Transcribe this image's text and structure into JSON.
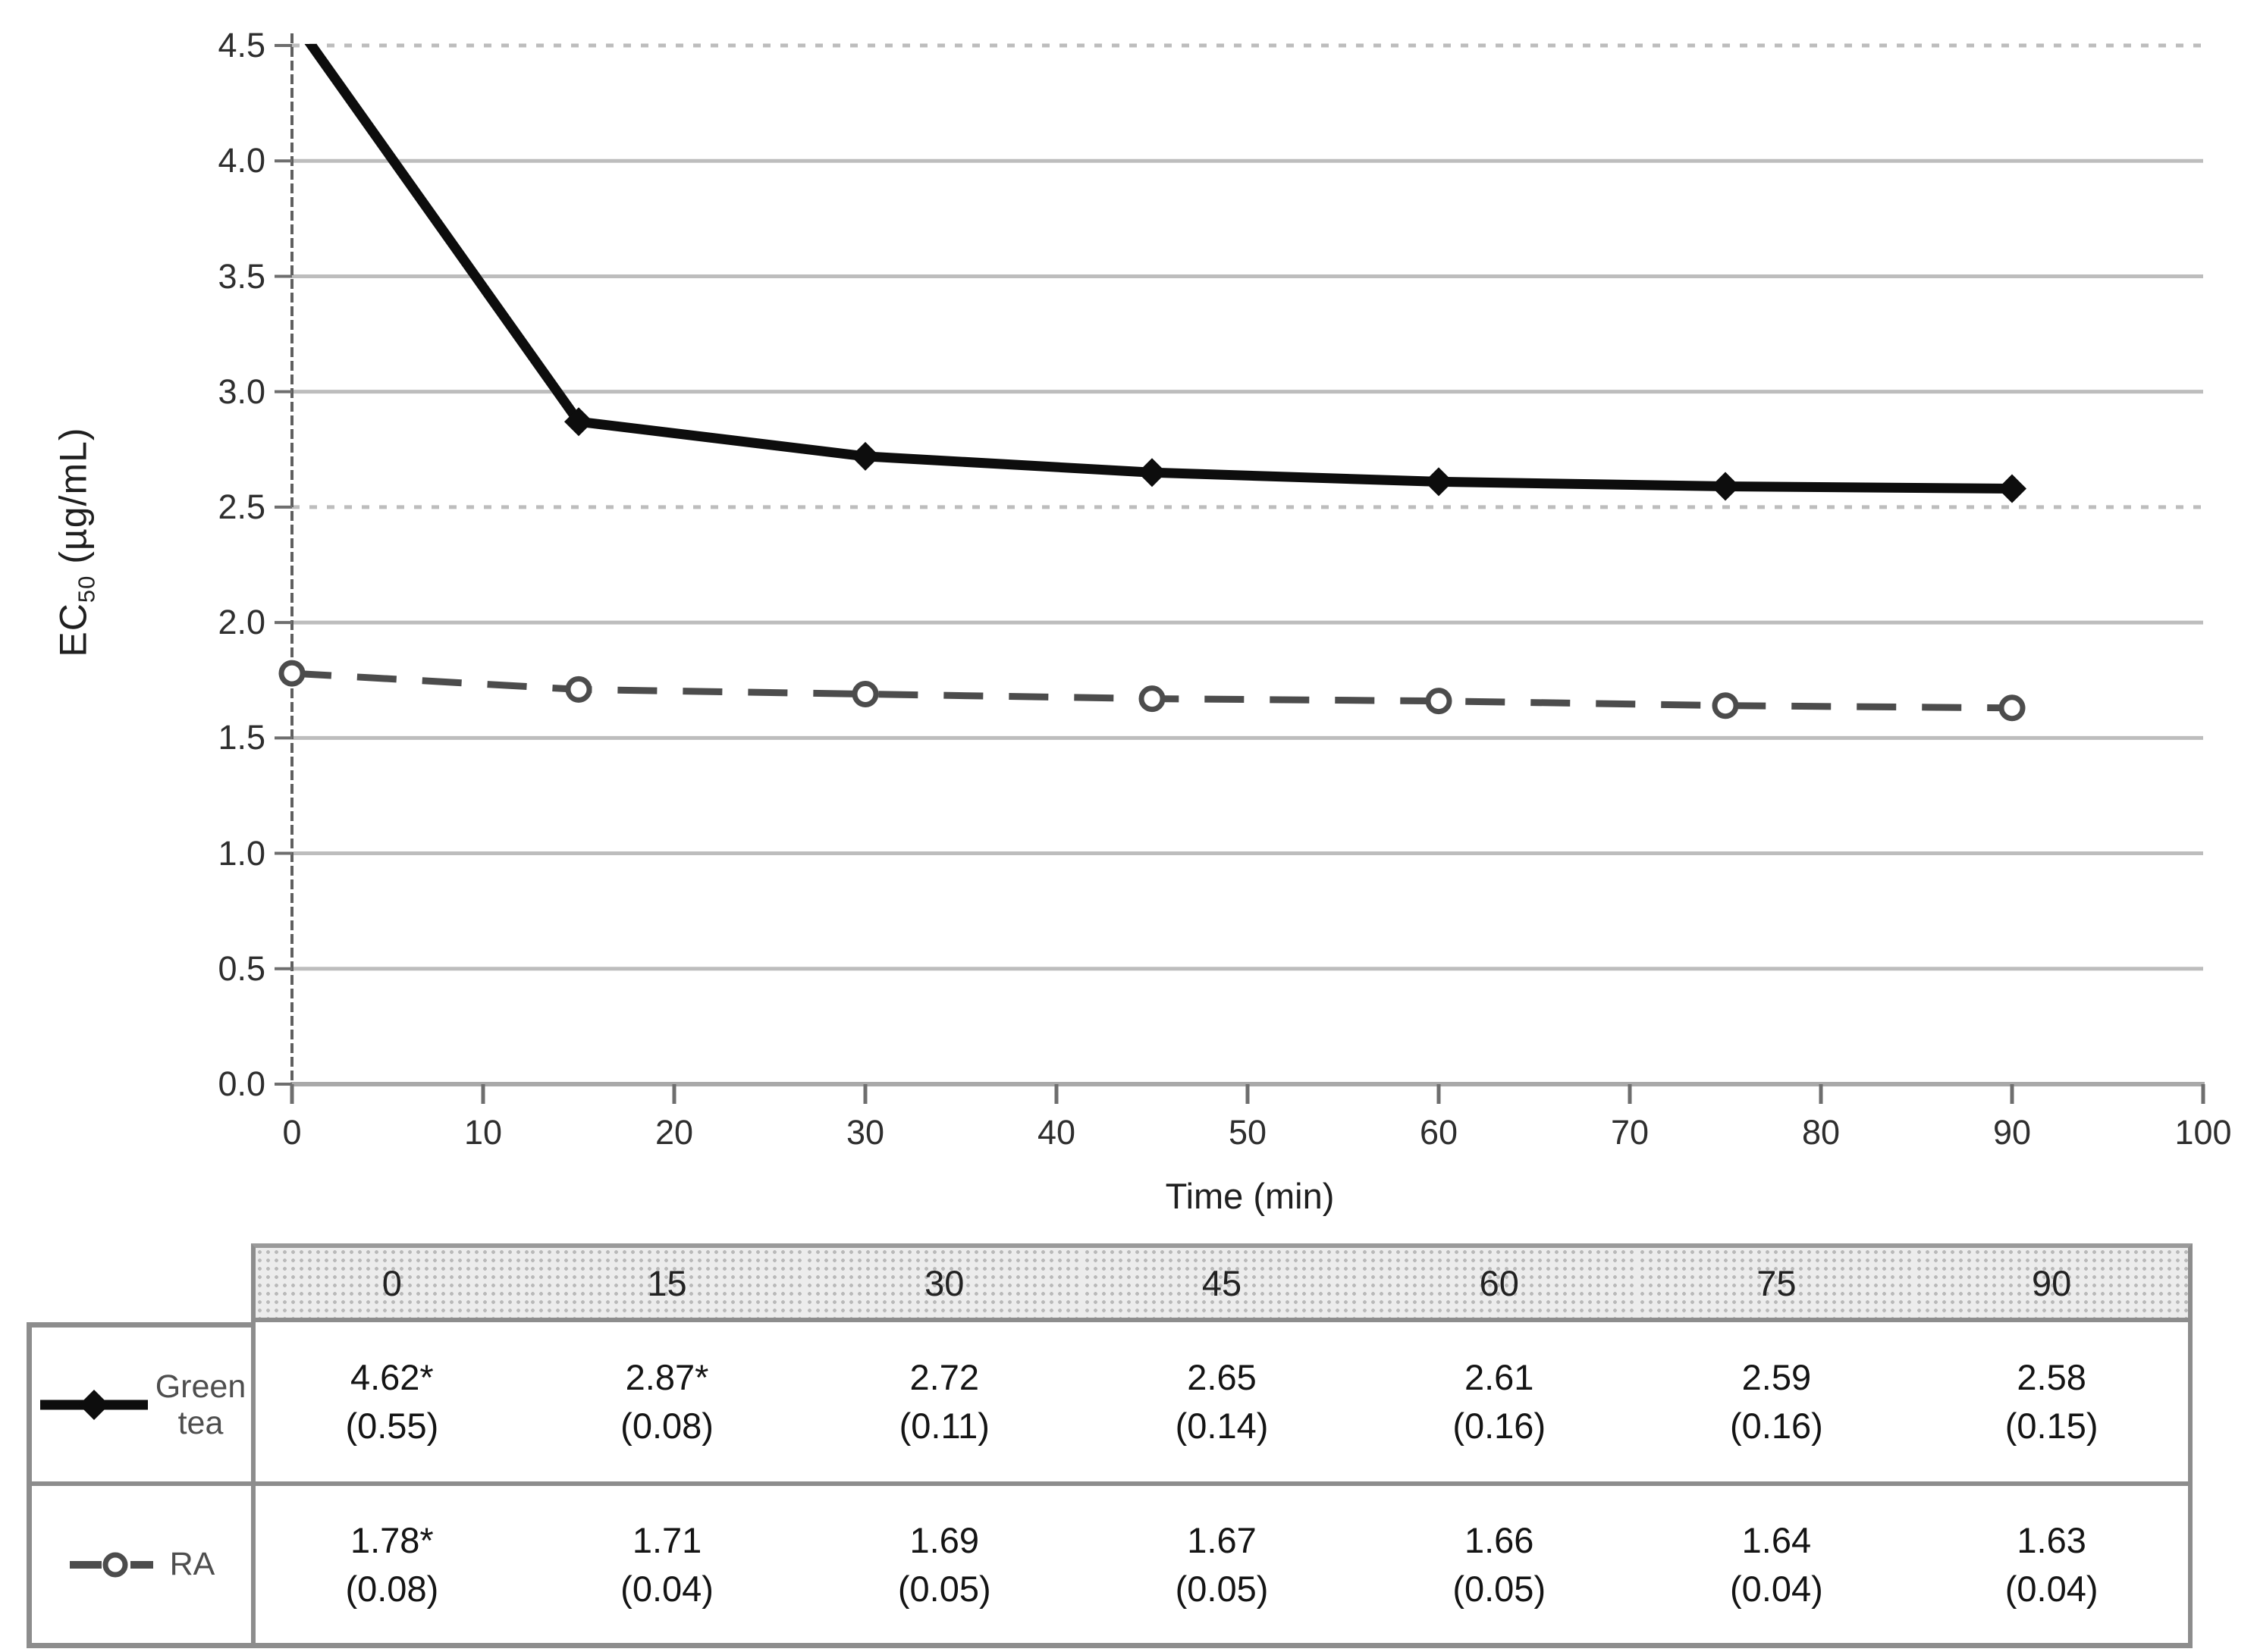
{
  "chart_data": {
    "type": "line",
    "title": "",
    "xlabel": "Time (min)",
    "ylabel": "EC50 (µg/mL)",
    "ylabel_parts": {
      "base": "EC",
      "sub": "50",
      "unit": " (µg/mL)"
    },
    "x": [
      0,
      15,
      30,
      45,
      60,
      75,
      90
    ],
    "xlim": [
      0,
      100
    ],
    "ylim": [
      0,
      4.5
    ],
    "x_ticks": [
      0,
      10,
      20,
      30,
      40,
      50,
      60,
      70,
      80,
      90,
      100
    ],
    "x_tick_labels": [
      "0",
      "10",
      "20",
      "30",
      "40",
      "50",
      "60",
      "70",
      "80",
      "90",
      "100"
    ],
    "y_ticks": [
      0,
      0.5,
      1,
      1.5,
      2,
      2.5,
      3,
      3.5,
      4,
      4.5
    ],
    "y_tick_labels": [
      "0.0",
      "0.5",
      "1.0",
      "1.5",
      "2.0",
      "2.5",
      "3.0",
      "3.5",
      "4.0",
      "4.5"
    ],
    "grid": "horizontal",
    "dashed_gridlines": [
      2.5,
      4.5
    ],
    "legend_position": "left-column-of-table",
    "series": [
      {
        "name": "Green tea",
        "slug": "green-tea",
        "marker": "filled-diamond",
        "line": "solid",
        "color": "#0d0d0d",
        "values": [
          4.62,
          2.87,
          2.72,
          2.65,
          2.61,
          2.59,
          2.58
        ],
        "se": [
          0.55,
          0.08,
          0.11,
          0.14,
          0.16,
          0.16,
          0.15
        ]
      },
      {
        "name": "RA",
        "slug": "ra",
        "marker": "open-circle",
        "line": "dashed",
        "color": "#4c4c4c",
        "values": [
          1.78,
          1.71,
          1.69,
          1.67,
          1.66,
          1.64,
          1.63
        ],
        "se": [
          0.08,
          0.04,
          0.05,
          0.05,
          0.05,
          0.04,
          0.04
        ]
      }
    ]
  },
  "table": {
    "columns": [
      "0",
      "15",
      "30",
      "45",
      "60",
      "75",
      "90"
    ],
    "rows": [
      {
        "legend_label": "Green tea",
        "legend_line1": "Green",
        "legend_line2": "tea",
        "values": [
          "4.62*",
          "2.87*",
          "2.72",
          "2.65",
          "2.61",
          "2.59",
          "2.58"
        ],
        "se": [
          "(0.55)",
          "(0.08)",
          "(0.11)",
          "(0.14)",
          "(0.16)",
          "(0.16)",
          "(0.15)"
        ]
      },
      {
        "legend_label": "RA",
        "values": [
          "1.78*",
          "1.71",
          "1.69",
          "1.67",
          "1.66",
          "1.64",
          "1.63"
        ],
        "se": [
          "(0.08)",
          "(0.04)",
          "(0.05)",
          "(0.05)",
          "(0.05)",
          "(0.04)",
          "(0.04)"
        ]
      }
    ]
  }
}
